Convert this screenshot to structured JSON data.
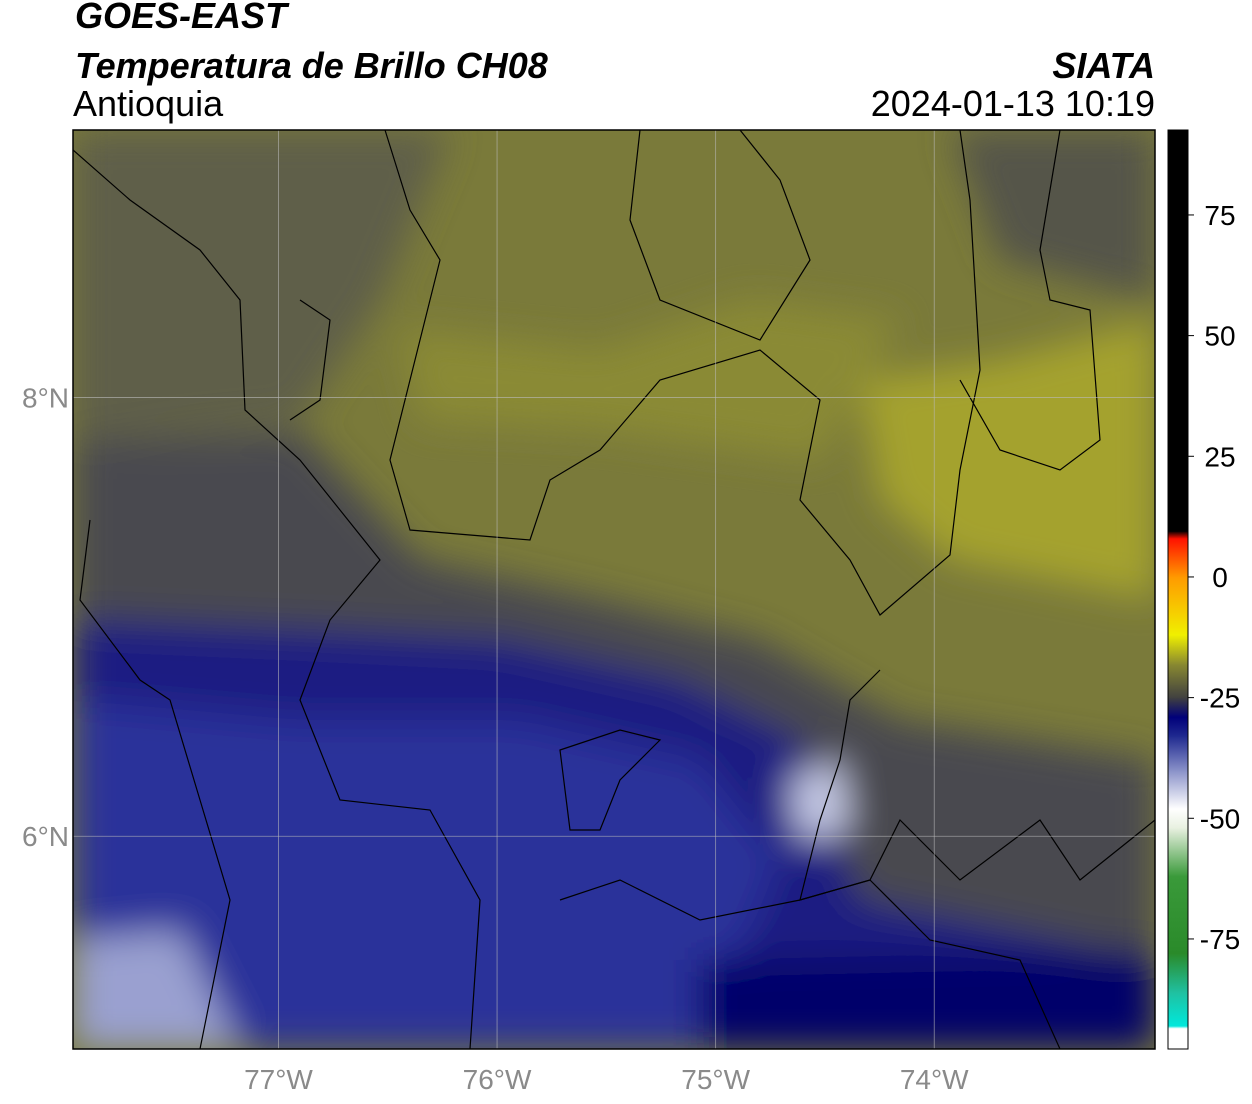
{
  "map": {
    "title": "GOES-EAST",
    "subtitle": "Temperatura de Brillo CH08",
    "region": "Antioquia",
    "source": "SIATA",
    "datetime": "2024-01-13 10:19",
    "xlim": [
      -77.94,
      -72.99
    ],
    "ylim": [
      5.03,
      9.22
    ],
    "xticks": [
      {
        "value": -77,
        "label": "77°W"
      },
      {
        "value": -76,
        "label": "76°W"
      },
      {
        "value": -75,
        "label": "75°W"
      },
      {
        "value": -74,
        "label": "74°W"
      }
    ],
    "yticks": [
      {
        "value": 8,
        "label": "8°N"
      },
      {
        "value": 6,
        "label": "6°N"
      }
    ],
    "grid": true,
    "colorbar": {
      "lim": [
        -97.8,
        92.6
      ],
      "ticks": [
        75,
        50,
        25,
        0,
        -25,
        -50,
        -75
      ],
      "stops": [
        {
          "value": -97.8,
          "color": "#ffffff"
        },
        {
          "value": -93.5,
          "color": "#ffffff"
        },
        {
          "value": -93,
          "color": "#00e8dc"
        },
        {
          "value": -86,
          "color": "#20c0a0"
        },
        {
          "value": -78,
          "color": "#2a8a2a"
        },
        {
          "value": -62,
          "color": "#3a9a3a"
        },
        {
          "value": -52,
          "color": "#e8f0e0"
        },
        {
          "value": -48,
          "color": "#ffffff"
        },
        {
          "value": -40,
          "color": "#8890c8"
        },
        {
          "value": -33,
          "color": "#202a90"
        },
        {
          "value": -29,
          "color": "#00007a"
        },
        {
          "value": -25,
          "color": "#404040"
        },
        {
          "value": -18,
          "color": "#8a8a30"
        },
        {
          "value": -12,
          "color": "#f0f000"
        },
        {
          "value": 0,
          "color": "#ff9a00"
        },
        {
          "value": 8,
          "color": "#ff1000"
        },
        {
          "value": 9.5,
          "color": "#000000"
        },
        {
          "value": 92.6,
          "color": "#000000"
        }
      ]
    }
  }
}
